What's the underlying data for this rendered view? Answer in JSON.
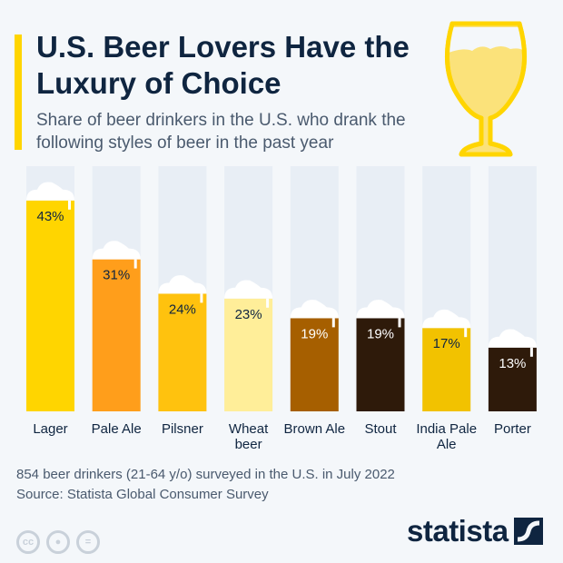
{
  "header": {
    "title": "U.S. Beer Lovers Have the Luxury of Choice",
    "subtitle": "Share of beer drinkers in the U.S. who drank the following styles of beer in the past year"
  },
  "chart_data": {
    "type": "bar",
    "title": "U.S. Beer Lovers Have the Luxury of Choice",
    "categories": [
      "Lager",
      "Pale Ale",
      "Pilsner",
      "Wheat beer",
      "Brown Ale",
      "Stout",
      "India Pale Ale",
      "Porter"
    ],
    "values": [
      43,
      31,
      24,
      23,
      19,
      19,
      17,
      13
    ],
    "labels": [
      "43%",
      "31%",
      "24%",
      "23%",
      "19%",
      "19%",
      "17%",
      "13%"
    ],
    "colors": [
      "#ffd500",
      "#ff9e1b",
      "#ffc20e",
      "#ffee99",
      "#a65f00",
      "#2e1a0a",
      "#f2c200",
      "#2e1a0a"
    ],
    "label_colors": [
      "#0f2540",
      "#0f2540",
      "#0f2540",
      "#0f2540",
      "#ffffff",
      "#ffffff",
      "#0f2540",
      "#ffffff"
    ],
    "ylim": [
      0,
      50
    ],
    "grid": false,
    "xlabel": "",
    "ylabel": ""
  },
  "footer": {
    "note": "854 beer drinkers (21-64 y/o) surveyed in the U.S. in July 2022",
    "source": "Source: Statista Global Consumer Survey",
    "logo": "statista",
    "cc_icons": [
      "cc",
      "by",
      "nd"
    ]
  }
}
